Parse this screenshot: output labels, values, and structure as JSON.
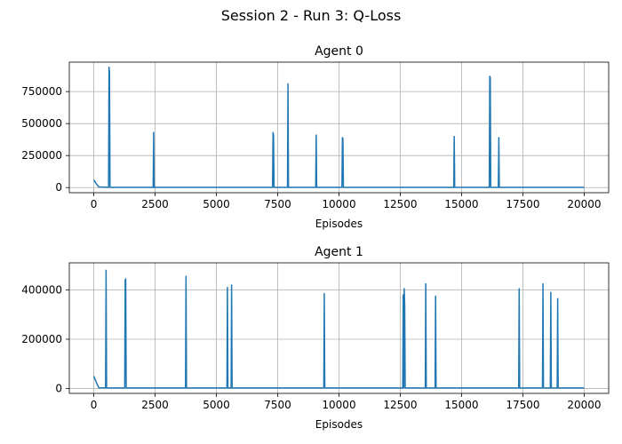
{
  "figure_title": "Session 2 - Run 3: Q-Loss",
  "chart_data": [
    {
      "type": "line",
      "title": "Agent 0",
      "xlabel": "Episodes",
      "ylabel": "",
      "xlim": [
        -1000,
        21000
      ],
      "ylim": [
        -40000,
        980000
      ],
      "xticks": [
        0,
        2500,
        5000,
        7500,
        10000,
        12500,
        15000,
        17500,
        20000
      ],
      "xtick_labels": [
        "0",
        "2500",
        "5000",
        "7500",
        "10000",
        "12500",
        "15000",
        "17500",
        "20000"
      ],
      "yticks": [
        0,
        250000,
        500000,
        750000
      ],
      "ytick_labels": [
        "0",
        "250000",
        "500000",
        "750000"
      ],
      "grid": true,
      "color": "#1f77b4",
      "series": [
        {
          "x": [
            0,
            100,
            200,
            600,
            620,
            640,
            660,
            2420,
            2440,
            2460,
            7290,
            7310,
            7330,
            7350,
            7900,
            7920,
            7940,
            9050,
            9070,
            9090,
            10120,
            10140,
            10160,
            10180,
            14680,
            14700,
            14720,
            16130,
            16150,
            16170,
            16190,
            16500,
            16520,
            16540,
            20000
          ],
          "y": [
            60000,
            30000,
            5000,
            2000,
            940000,
            900000,
            2000,
            2000,
            430000,
            2000,
            2000,
            430000,
            410000,
            2000,
            2000,
            810000,
            2000,
            2000,
            410000,
            2000,
            2000,
            390000,
            380000,
            2000,
            2000,
            400000,
            2000,
            2000,
            870000,
            860000,
            2000,
            2000,
            390000,
            2000,
            2000
          ]
        }
      ]
    },
    {
      "type": "line",
      "title": "Agent 1",
      "xlabel": "Episodes",
      "ylabel": "",
      "xlim": [
        -1000,
        21000
      ],
      "ylim": [
        -20000,
        510000
      ],
      "xticks": [
        0,
        2500,
        5000,
        7500,
        10000,
        12500,
        15000,
        17500,
        20000
      ],
      "xtick_labels": [
        "0",
        "2500",
        "5000",
        "7500",
        "10000",
        "12500",
        "15000",
        "17500",
        "20000"
      ],
      "yticks": [
        0,
        200000,
        400000
      ],
      "ytick_labels": [
        "0",
        "200000",
        "400000"
      ],
      "grid": true,
      "color": "#1f77b4",
      "series": [
        {
          "x": [
            0,
            100,
            200,
            480,
            500,
            520,
            1260,
            1280,
            1300,
            1320,
            3740,
            3760,
            3780,
            5430,
            5450,
            5470,
            5600,
            5620,
            5640,
            9380,
            9400,
            9420,
            12600,
            12620,
            12640,
            12660,
            12680,
            12700,
            13520,
            13540,
            13560,
            13920,
            13940,
            13960,
            17330,
            17350,
            17370,
            18300,
            18320,
            18340,
            18620,
            18640,
            18660,
            18900,
            18920,
            18940,
            20000
          ],
          "y": [
            50000,
            25000,
            3000,
            2000,
            480000,
            2000,
            2000,
            440000,
            445000,
            2000,
            2000,
            455000,
            2000,
            2000,
            410000,
            2000,
            2000,
            420000,
            2000,
            2000,
            385000,
            2000,
            2000,
            380000,
            2000,
            405000,
            340000,
            2000,
            2000,
            425000,
            2000,
            2000,
            375000,
            2000,
            2000,
            405000,
            2000,
            2000,
            425000,
            2000,
            2000,
            390000,
            2000,
            2000,
            365000,
            2000,
            2000
          ]
        }
      ]
    }
  ]
}
